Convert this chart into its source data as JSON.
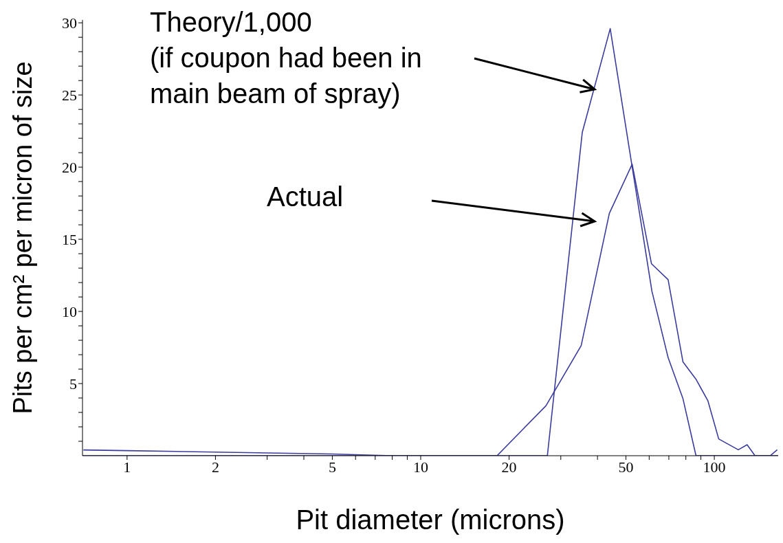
{
  "chart_data": {
    "type": "line",
    "xlabel": "Pit diameter (microns)",
    "ylabel": "Pits per cm² per micron of size",
    "log": "x",
    "xlim": [
      0.705,
      165
    ],
    "xticks": [
      1,
      2,
      {
        "value": 3,
        "label": null
      },
      {
        "value": 4,
        "label": null
      },
      5,
      {
        "value": 6,
        "label": null
      },
      {
        "value": 7,
        "label": null
      },
      {
        "value": 8,
        "label": null
      },
      {
        "value": 9,
        "label": null
      },
      10,
      20,
      {
        "value": 30,
        "label": null
      },
      {
        "value": 40,
        "label": null
      },
      50,
      {
        "value": 60,
        "label": null
      },
      {
        "value": 70,
        "label": null
      },
      {
        "value": 80,
        "label": null
      },
      {
        "value": 90,
        "label": null
      },
      100
    ],
    "ylim": [
      0,
      30.2
    ],
    "yticks": [
      {
        "value": 1,
        "label": null
      },
      {
        "value": 2,
        "label": null
      },
      {
        "value": 3,
        "label": null
      },
      {
        "value": 4,
        "label": null
      },
      5,
      {
        "value": 6,
        "label": null
      },
      {
        "value": 7,
        "label": null
      },
      {
        "value": 8,
        "label": null
      },
      {
        "value": 9,
        "label": null
      },
      10,
      {
        "value": 11,
        "label": null
      },
      {
        "value": 12,
        "label": null
      },
      {
        "value": 13,
        "label": null
      },
      {
        "value": 14,
        "label": null
      },
      15,
      {
        "value": 16,
        "label": null
      },
      {
        "value": 17,
        "label": null
      },
      {
        "value": 18,
        "label": null
      },
      {
        "value": 19,
        "label": null
      },
      20,
      {
        "value": 21,
        "label": null
      },
      {
        "value": 22,
        "label": null
      },
      {
        "value": 23,
        "label": null
      },
      {
        "value": 24,
        "label": null
      },
      25,
      {
        "value": 26,
        "label": null
      },
      {
        "value": 27,
        "label": null
      },
      {
        "value": 28,
        "label": null
      },
      {
        "value": 29,
        "label": null
      },
      30
    ],
    "series": [
      {
        "color": "#3b3b9c",
        "x": [
          0.705,
          27,
          35.5,
          44.2,
          61.3,
          69.6,
          78.2,
          86.6,
          165
        ],
        "values": [
          0,
          0,
          22.4,
          29.6,
          11.4,
          6.8,
          3.95,
          0,
          0
        ]
      },
      {
        "color": "#3b3b9c",
        "x": [
          0.71,
          1,
          2,
          5,
          8,
          18.2,
          26.7,
          35.2,
          43.9,
          52.5,
          61.1,
          69.6,
          78.2,
          86.6,
          95.1,
          103.5,
          120.7,
          129.3,
          137.6,
          155,
          163.8
        ],
        "values": [
          0.4,
          0.35,
          0.25,
          0.12,
          0,
          0,
          3.46,
          7.63,
          16.8,
          20.2,
          13.3,
          12.2,
          6.5,
          5.3,
          3.8,
          1.16,
          0.41,
          0.76,
          0,
          0,
          0.41
        ]
      }
    ],
    "annotations": [
      "Theory/1,000\n(if coupon had been in\nmain beam of spray)",
      "Actual"
    ]
  }
}
